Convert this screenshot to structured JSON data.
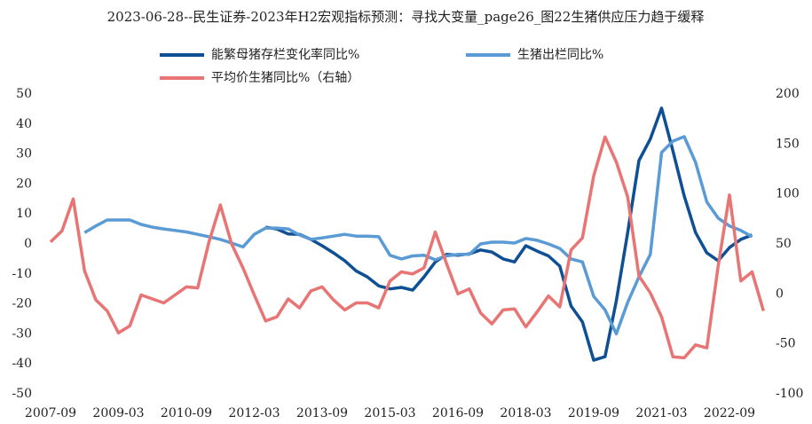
{
  "chart_data": {
    "type": "line",
    "title": "2023-06-28--民生证券-2023年H2宏观指标预测：寻找大变量_page26_图22生猪供应压力趋于缓释",
    "categories": [
      "2007-09",
      null,
      null,
      null,
      null,
      null,
      "2009-03",
      null,
      null,
      null,
      null,
      null,
      "2010-09",
      null,
      null,
      null,
      null,
      null,
      "2012-03",
      null,
      null,
      null,
      null,
      null,
      "2013-09",
      null,
      null,
      null,
      null,
      null,
      "2015-03",
      null,
      null,
      null,
      null,
      null,
      "2016-09",
      null,
      null,
      null,
      null,
      null,
      "2018-03",
      null,
      null,
      null,
      null,
      null,
      "2019-09",
      null,
      null,
      null,
      null,
      null,
      "2021-03",
      null,
      null,
      null,
      null,
      null,
      "2022-09",
      null,
      null,
      null
    ],
    "ylim": [
      -50,
      50
    ],
    "yticks": [
      -50,
      -40,
      -30,
      -20,
      -10,
      0,
      10,
      20,
      30,
      40,
      50
    ],
    "y2lim": [
      -100,
      200
    ],
    "y2ticks": [
      -100,
      -50,
      0,
      50,
      100,
      150,
      200
    ],
    "series": [
      {
        "name": "能繁母猪存栏变化率同比%",
        "color": "#0f4f93",
        "values": [
          null,
          null,
          null,
          null,
          null,
          null,
          null,
          null,
          null,
          null,
          null,
          null,
          null,
          null,
          null,
          null,
          null,
          null,
          null,
          5.6,
          5,
          3.3,
          3.2,
          1.5,
          -0.6,
          -3,
          -5.6,
          -9,
          -11,
          -14,
          -15,
          -14.5,
          -15.4,
          -11,
          -6,
          -3.5,
          -3.8,
          -3.3,
          -2,
          -2.7,
          -5,
          -6,
          -0.6,
          -2.4,
          -4,
          -7.4,
          -20.7,
          -26,
          -38.8,
          -37.6,
          -19,
          3.8,
          27.8,
          35,
          45.3,
          31,
          16,
          3.8,
          -3,
          -5.6,
          -1.2,
          1.5,
          3,
          null
        ]
      },
      {
        "name": "生猪出栏同比%",
        "color": "#5b9bd5",
        "values": [
          null,
          null,
          null,
          3.8,
          6,
          8,
          8,
          8,
          6.5,
          5.6,
          5,
          4.5,
          4,
          3.2,
          2.4,
          1.5,
          0.3,
          -1,
          3.2,
          5.3,
          5.3,
          5,
          3,
          1.5,
          2,
          2.6,
          3.2,
          2.6,
          2.6,
          2.4,
          -3.8,
          -5,
          -4,
          -3.8,
          -5.3,
          -4,
          -3.5,
          -3.5,
          0,
          0.6,
          0.6,
          0.3,
          1.8,
          1.2,
          0,
          -1.5,
          -5,
          -6,
          -17.5,
          -22,
          -30,
          -19.5,
          -11,
          -3.5,
          30.5,
          34.3,
          35.8,
          27.2,
          14,
          8.6,
          6,
          4.5,
          2.4,
          null
        ]
      },
      {
        "name": "平均价生猪同比%（右轴）",
        "color": "#e87474",
        "axis": "y2",
        "values": [
          52,
          63,
          95,
          23,
          -6,
          -17,
          -39,
          -32,
          -1,
          -5,
          -9,
          -1,
          7,
          6,
          52,
          89,
          50,
          26,
          -1,
          -27,
          -23,
          -5,
          -14,
          3,
          7,
          -6,
          -16,
          -9,
          -9,
          -14,
          13,
          22,
          20,
          26,
          62,
          30,
          0,
          5,
          -19,
          -30,
          -16,
          -15,
          -33,
          -18,
          -2,
          -13,
          44,
          56,
          118,
          157,
          132,
          97,
          18,
          1,
          -23,
          -63,
          -64,
          -51,
          -54,
          28,
          99,
          13,
          22,
          -17
        ]
      }
    ]
  }
}
